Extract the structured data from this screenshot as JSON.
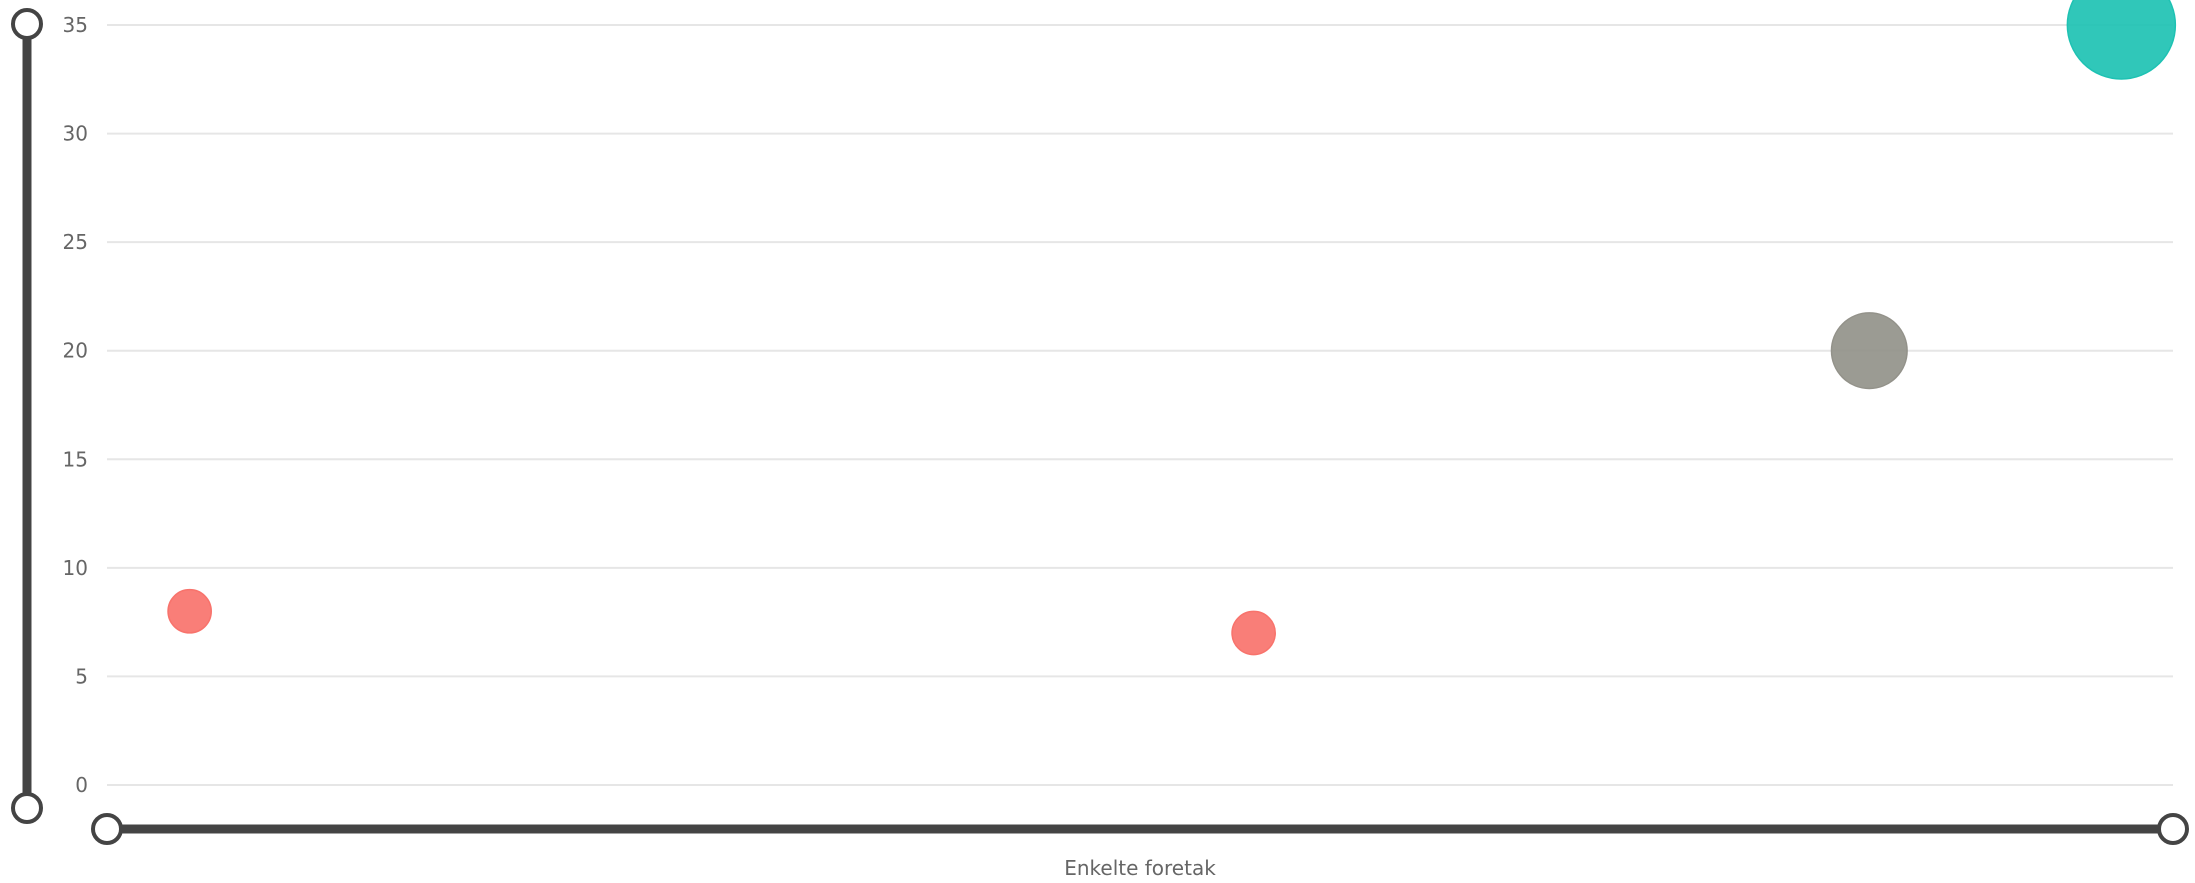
{
  "chart_data": {
    "type": "scatter",
    "title": "",
    "xlabel": "Enkelte foretak",
    "ylabel": "",
    "ylim": [
      0,
      35
    ],
    "yticks": [
      0,
      5,
      10,
      15,
      20,
      25,
      30,
      35
    ],
    "grid": true,
    "legend": "none",
    "points": [
      {
        "position": 0.04,
        "y": 8,
        "size": 1,
        "color": "#f8736c"
      },
      {
        "position": 0.555,
        "y": 7,
        "size": 1,
        "color": "#f8736c"
      },
      {
        "position": 0.853,
        "y": 20,
        "size": 2,
        "color": "#93928a"
      },
      {
        "position": 0.975,
        "y": 35,
        "size": 3,
        "color": "#1ec2b3"
      }
    ]
  }
}
